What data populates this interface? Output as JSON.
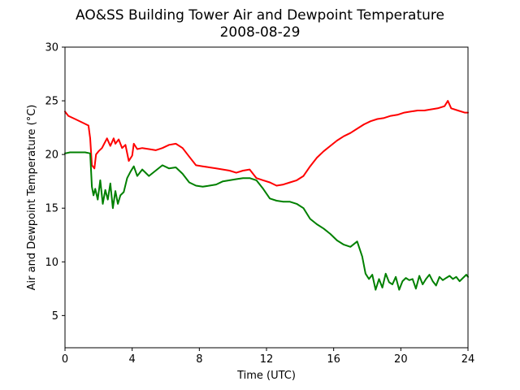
{
  "chart_data": {
    "type": "line",
    "title": "AO&SS Building Tower Air and Dewpoint Temperature",
    "subtitle": "2008-08-29",
    "xlabel": "Time (UTC)",
    "ylabel": "Air and Dewpoint Temperature (°C)",
    "xlim": [
      0,
      24
    ],
    "ylim": [
      2,
      30
    ],
    "xticks": [
      0,
      4,
      8,
      12,
      16,
      20,
      24
    ],
    "yticks": [
      5,
      10,
      15,
      20,
      25,
      30
    ],
    "grid": false,
    "series": [
      {
        "color": "#ff0000",
        "x": [
          0,
          0.2,
          0.6,
          1.0,
          1.4,
          1.5,
          1.6,
          1.75,
          1.85,
          2.0,
          2.2,
          2.5,
          2.7,
          2.9,
          3.0,
          3.2,
          3.4,
          3.6,
          3.8,
          4.0,
          4.1,
          4.3,
          4.6,
          5.0,
          5.4,
          5.8,
          6.2,
          6.6,
          7.0,
          7.4,
          7.8,
          8.2,
          8.6,
          9.0,
          9.4,
          9.8,
          10.2,
          10.6,
          11.0,
          11.4,
          11.8,
          12.2,
          12.6,
          13.0,
          13.4,
          13.8,
          14.2,
          14.6,
          15.0,
          15.4,
          15.8,
          16.2,
          16.6,
          17.0,
          17.4,
          17.8,
          18.2,
          18.6,
          19.0,
          19.4,
          19.8,
          20.2,
          20.6,
          21.0,
          21.4,
          21.8,
          22.2,
          22.6,
          22.8,
          23.0,
          23.4,
          23.8,
          24.0
        ],
        "values": [
          24.0,
          23.6,
          23.3,
          23.0,
          22.7,
          21.5,
          19.0,
          18.7,
          20.0,
          20.3,
          20.6,
          21.5,
          20.8,
          21.5,
          21.0,
          21.4,
          20.6,
          20.9,
          19.4,
          19.9,
          21.0,
          20.5,
          20.6,
          20.5,
          20.4,
          20.6,
          20.9,
          21.0,
          20.6,
          19.8,
          19.0,
          18.9,
          18.8,
          18.7,
          18.6,
          18.5,
          18.3,
          18.5,
          18.6,
          17.8,
          17.6,
          17.4,
          17.1,
          17.2,
          17.4,
          17.6,
          18.0,
          18.9,
          19.7,
          20.3,
          20.8,
          21.3,
          21.7,
          22.0,
          22.4,
          22.8,
          23.1,
          23.3,
          23.4,
          23.6,
          23.7,
          23.9,
          24.0,
          24.1,
          24.1,
          24.2,
          24.3,
          24.5,
          25.0,
          24.3,
          24.1,
          23.9,
          23.9
        ]
      },
      {
        "color": "#008000",
        "x": [
          0,
          0.3,
          0.8,
          1.2,
          1.5,
          1.6,
          1.7,
          1.8,
          1.95,
          2.1,
          2.25,
          2.4,
          2.55,
          2.7,
          2.85,
          3.0,
          3.15,
          3.3,
          3.5,
          3.7,
          3.9,
          4.1,
          4.3,
          4.6,
          5.0,
          5.4,
          5.8,
          6.2,
          6.6,
          7.0,
          7.4,
          7.8,
          8.2,
          8.6,
          9.0,
          9.4,
          9.8,
          10.2,
          10.6,
          11.0,
          11.4,
          11.8,
          12.2,
          12.6,
          13.0,
          13.4,
          13.8,
          14.2,
          14.6,
          15.0,
          15.4,
          15.8,
          16.2,
          16.6,
          17.0,
          17.4,
          17.7,
          17.9,
          18.1,
          18.3,
          18.5,
          18.7,
          18.9,
          19.1,
          19.3,
          19.5,
          19.7,
          19.9,
          20.1,
          20.3,
          20.5,
          20.7,
          20.9,
          21.1,
          21.3,
          21.5,
          21.7,
          21.9,
          22.1,
          22.3,
          22.5,
          22.7,
          22.9,
          23.1,
          23.3,
          23.5,
          23.7,
          23.9,
          24.0
        ],
        "values": [
          20.1,
          20.2,
          20.2,
          20.2,
          20.1,
          17.0,
          16.2,
          16.8,
          15.8,
          17.6,
          15.4,
          16.7,
          15.8,
          17.3,
          15.0,
          16.6,
          15.4,
          16.2,
          16.5,
          17.8,
          18.4,
          18.9,
          18.0,
          18.6,
          18.0,
          18.5,
          19.0,
          18.7,
          18.8,
          18.2,
          17.4,
          17.1,
          17.0,
          17.1,
          17.2,
          17.5,
          17.6,
          17.7,
          17.8,
          17.8,
          17.6,
          16.8,
          15.9,
          15.7,
          15.6,
          15.6,
          15.4,
          15.0,
          14.0,
          13.5,
          13.1,
          12.6,
          12.0,
          11.6,
          11.4,
          11.9,
          10.5,
          8.9,
          8.4,
          8.8,
          7.4,
          8.4,
          7.6,
          8.9,
          8.1,
          7.9,
          8.6,
          7.4,
          8.2,
          8.5,
          8.3,
          8.4,
          7.5,
          8.7,
          7.9,
          8.4,
          8.8,
          8.2,
          7.8,
          8.6,
          8.3,
          8.5,
          8.7,
          8.4,
          8.6,
          8.2,
          8.5,
          8.8,
          8.6
        ]
      }
    ]
  }
}
